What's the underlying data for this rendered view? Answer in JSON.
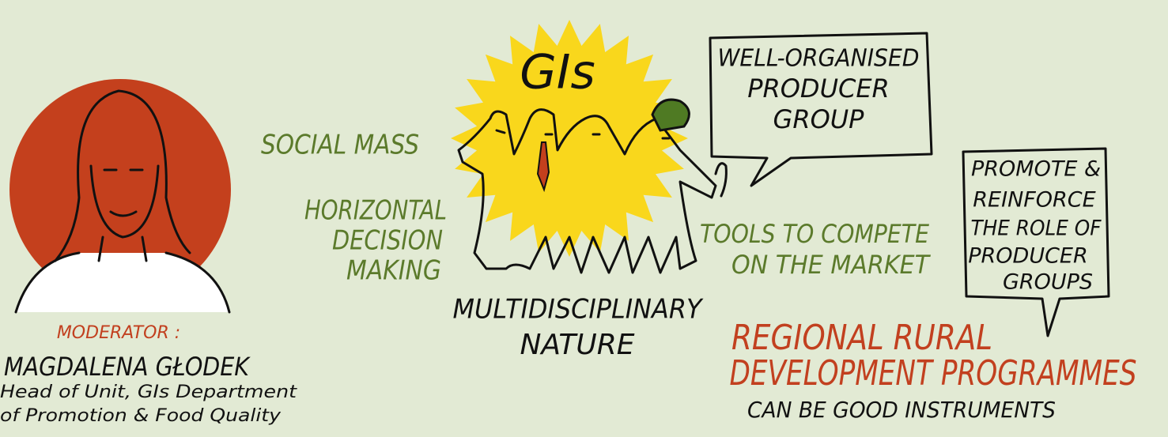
{
  "moderator": {
    "role": "MODERATOR :",
    "name": "MAGDALENA GŁODEK",
    "title_lines": [
      "Head of Unit, GIs Department",
      "of Promotion & Food Quality"
    ]
  },
  "center": {
    "title": "GIs",
    "caption_lines": [
      "MULTIDISCIPLINARY",
      "NATURE"
    ]
  },
  "social_mass": "SOCIAL MASS",
  "horizontal_lines": [
    "HORIZONTAL",
    "DECISION",
    "MAKING"
  ],
  "bubble_1_lines": [
    "WELL-ORGANISED",
    "PRODUCER",
    "GROUP"
  ],
  "tools_lines": [
    "TOOLS TO COMPETE",
    "ON THE MARKET"
  ],
  "bubble_2_lines": [
    "PROMOTE &",
    "REINFORCE",
    "THE ROLE OF",
    "PRODUCER",
    "GROUPS"
  ],
  "regional_lines": [
    "REGIONAL RURAL",
    "DEVELOPMENT PROGRAMMES"
  ],
  "instruments": "CAN BE GOOD INSTRUMENTS"
}
